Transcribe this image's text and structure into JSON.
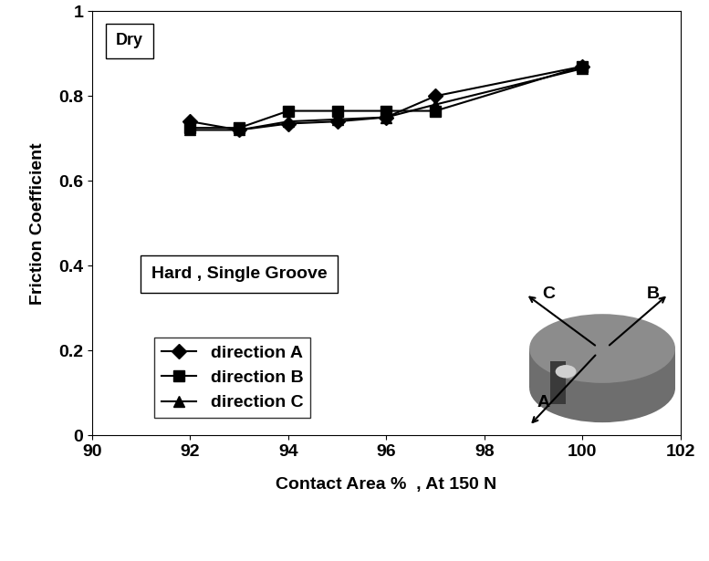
{
  "chart_data": {
    "type": "line",
    "x_label": "Contact Area %  , At 150 N",
    "y_label": "Friction Coefficient",
    "annotations": [
      "Dry",
      "Hard , Single Groove"
    ],
    "inset_labels": [
      "A",
      "B",
      "C"
    ],
    "x": [
      92,
      93,
      94,
      95,
      96,
      97,
      100
    ],
    "series": [
      {
        "name": "direction A",
        "color": "#000000",
        "marker": "diamond",
        "values": [
          0.74,
          0.72,
          0.735,
          0.74,
          0.75,
          0.8,
          0.87
        ]
      },
      {
        "name": "direction B",
        "color": "#000000",
        "marker": "square",
        "values": [
          0.725,
          0.725,
          0.765,
          0.765,
          0.765,
          0.765,
          0.87
        ]
      },
      {
        "name": "direction C",
        "color": "#000000",
        "marker": "triangle",
        "values": [
          0.72,
          0.72,
          0.74,
          0.745,
          0.75,
          0.78,
          0.865
        ]
      }
    ],
    "xlim": [
      90,
      102
    ],
    "xticks": [
      90,
      92,
      94,
      96,
      98,
      100,
      102
    ],
    "ylim": [
      0,
      1
    ],
    "yticks": [
      0,
      0.2,
      0.4,
      0.6,
      0.8,
      1
    ],
    "grid": false,
    "legend": "lower left"
  }
}
